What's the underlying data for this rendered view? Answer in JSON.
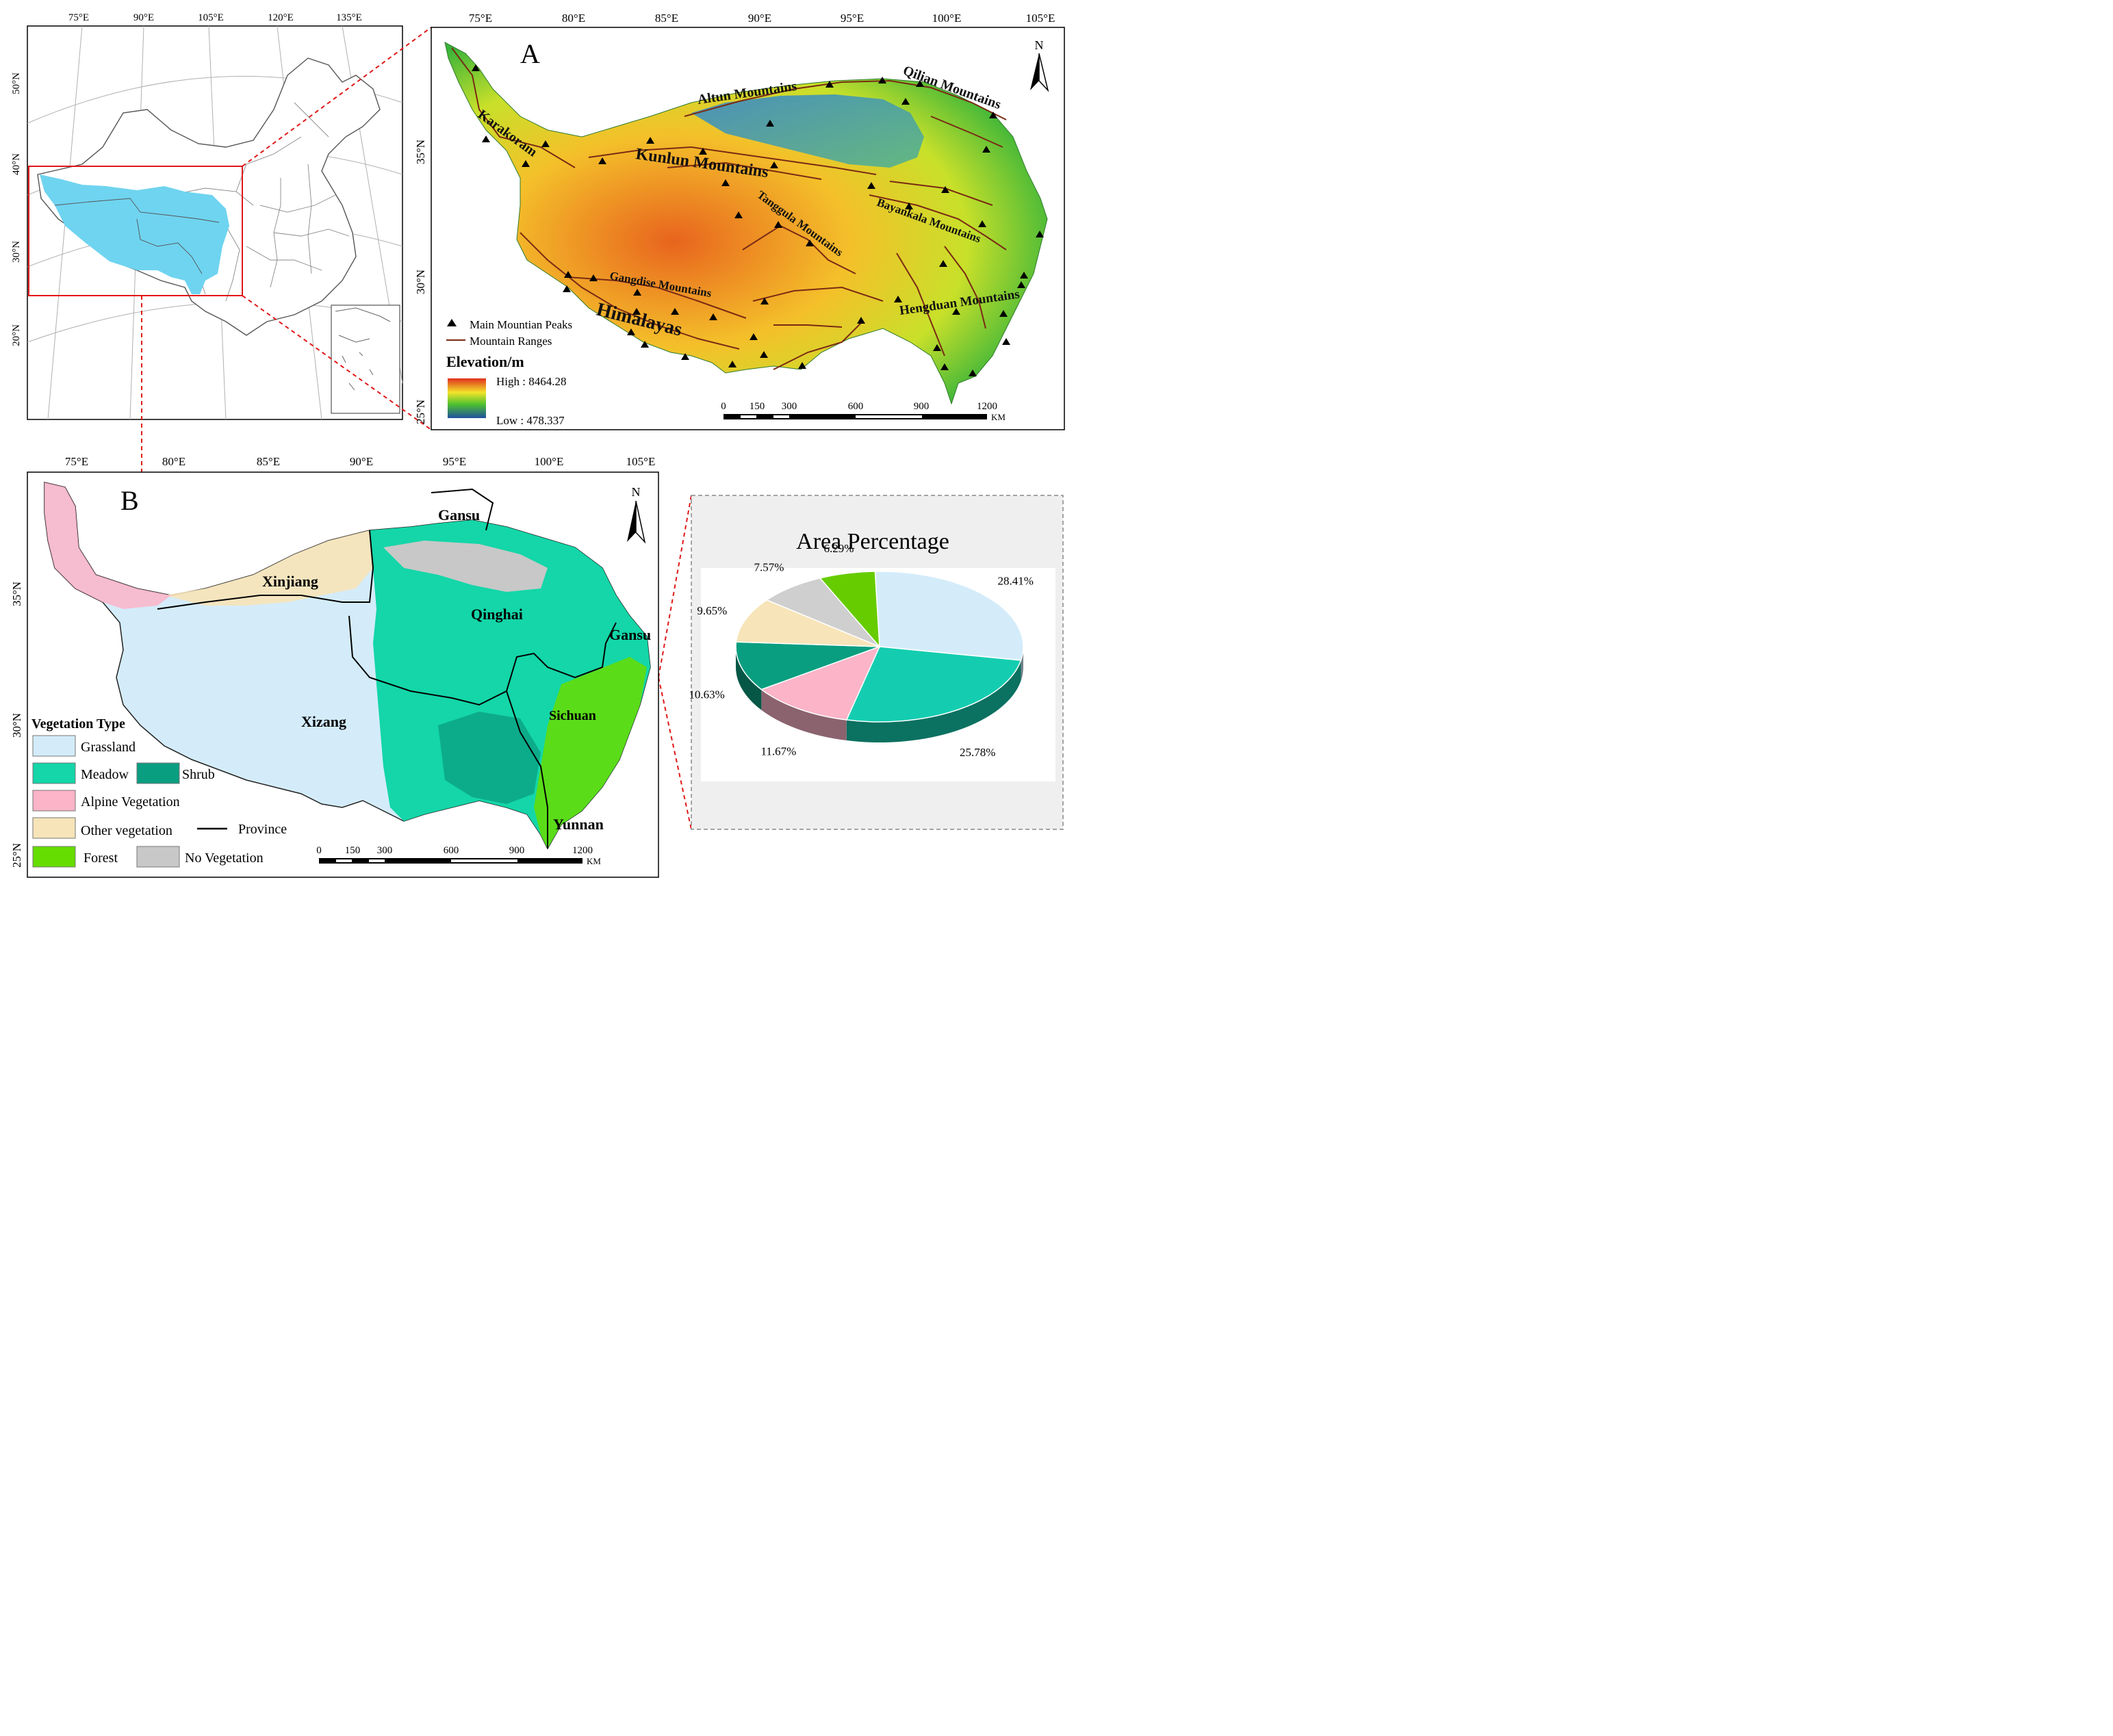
{
  "overview_map": {
    "lon_labels": [
      "75°E",
      "90°E",
      "105°E",
      "120°E",
      "135°E"
    ],
    "lat_labels": [
      "50°N",
      "40°N",
      "30°N",
      "20°N"
    ]
  },
  "panel_a": {
    "letter": "A",
    "north": "N",
    "lon_labels": [
      "75°E",
      "80°E",
      "85°E",
      "90°E",
      "95°E",
      "100°E",
      "105°E"
    ],
    "lat_labels": [
      "35°N",
      "30°N",
      "25°N"
    ],
    "mountains": [
      {
        "name": "Altun Mountains"
      },
      {
        "name": "Qilian Mountains"
      },
      {
        "name": "Karakoram"
      },
      {
        "name": "Kunlun Mountains"
      },
      {
        "name": "Tanggula Mountains"
      },
      {
        "name": "Bayankala Mountains"
      },
      {
        "name": "Gangdise Mountains"
      },
      {
        "name": "Hengduan Mountains"
      },
      {
        "name": "Himalayas"
      }
    ],
    "legend": {
      "peaks": "Main Mountian Peaks",
      "ranges": "Mountain Ranges",
      "elev_title": "Elevation/m",
      "high": "High : 8464.28",
      "low": "Low : 478.337"
    },
    "scale": {
      "ticks": [
        "0",
        "150",
        "300",
        "600",
        "900",
        "1200"
      ],
      "unit": "KM"
    },
    "colors": {
      "high": "#e0301e",
      "mid": "#f4e32a",
      "green": "#4fc22e",
      "low": "#1f4fa0",
      "range_line": "#7a2a14"
    }
  },
  "panel_b": {
    "letter": "B",
    "north": "N",
    "lon_labels": [
      "75°E",
      "80°E",
      "85°E",
      "90°E",
      "95°E",
      "100°E",
      "105°E"
    ],
    "lat_labels": [
      "35°N",
      "30°N",
      "25°N"
    ],
    "provinces": [
      "Gansu",
      "Xinjiang",
      "Qinghai",
      "Gansu",
      "Xizang",
      "Sichuan",
      "Yunnan"
    ],
    "legend": {
      "title": "Vegetation Type",
      "items": [
        {
          "label": "Grassland",
          "color": "#d4ecfa"
        },
        {
          "label": "Meadow",
          "color": "#14d6a8"
        },
        {
          "label": "Shrub",
          "color": "#0a9e80"
        },
        {
          "label": "Alpine Vegetation",
          "color": "#fbb4c8"
        },
        {
          "label": "Other vegetation",
          "color": "#f7e4b8"
        },
        {
          "label": "Province",
          "color": "#000000"
        },
        {
          "label": "Forest",
          "color": "#66dd00"
        },
        {
          "label": "No Vegetation",
          "color": "#c8c8c8"
        }
      ]
    },
    "scale": {
      "ticks": [
        "0",
        "150",
        "300",
        "600",
        "900",
        "1200"
      ],
      "unit": "KM"
    }
  },
  "chart_data": {
    "type": "pie",
    "title": "Area Percentage",
    "slices": [
      {
        "label": "28.41%",
        "value": 28.41,
        "color": "#d4ecfa"
      },
      {
        "label": "25.78%",
        "value": 25.78,
        "color": "#14cdb0"
      },
      {
        "label": "11.67%",
        "value": 11.67,
        "color": "#fbb4c8"
      },
      {
        "label": "10.63%",
        "value": 10.63,
        "color": "#0a9e80"
      },
      {
        "label": "9.65%",
        "value": 9.65,
        "color": "#f7e4b8"
      },
      {
        "label": "7.57%",
        "value": 7.57,
        "color": "#cfcfcf"
      },
      {
        "label": "6.29%",
        "value": 6.29,
        "color": "#66cc00"
      }
    ]
  }
}
